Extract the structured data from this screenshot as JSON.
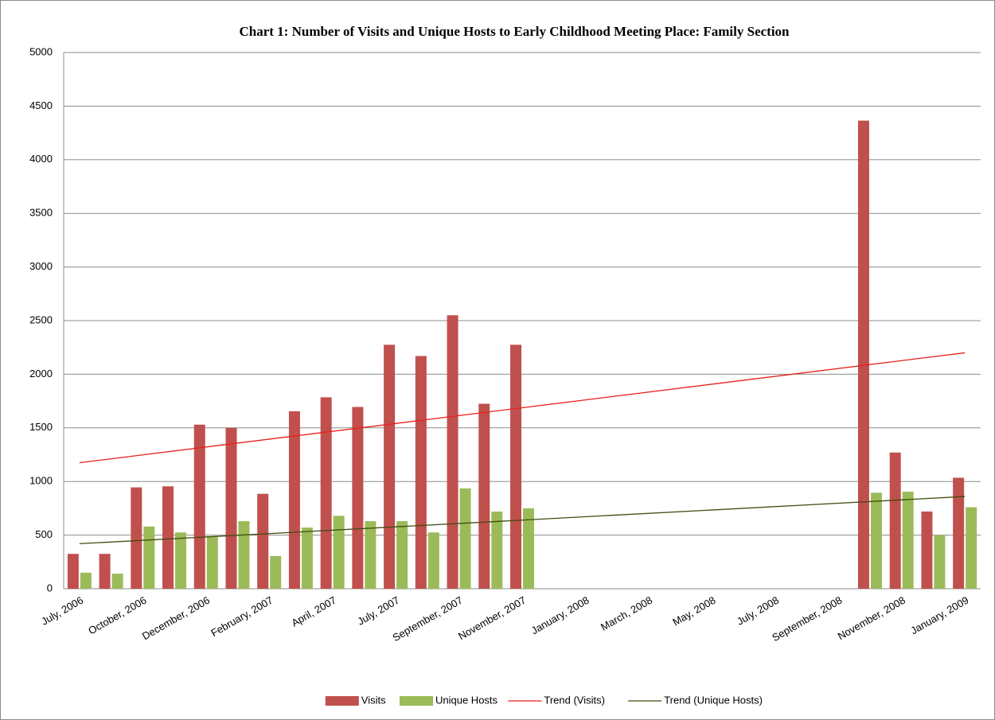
{
  "chart_data": {
    "type": "bar",
    "title": "Chart 1: Number of Visits and Unique Hosts to Early Childhood Meeting Place: Family Section",
    "categories": [
      "July, 2006",
      null,
      "October, 2006",
      null,
      "December, 2006",
      null,
      "February, 2007",
      null,
      "April, 2007",
      null,
      "July, 2007",
      null,
      "September, 2007",
      null,
      "November, 2007",
      null,
      "January, 2008",
      null,
      "March, 2008",
      null,
      "May, 2008",
      null,
      "July, 2008",
      null,
      "September, 2008",
      null,
      "November, 2008",
      null,
      "January, 2009"
    ],
    "series": [
      {
        "name": "Visits",
        "color": "#c0504d",
        "values": [
          325,
          325,
          945,
          955,
          1530,
          1500,
          885,
          1655,
          1785,
          1695,
          2275,
          2170,
          2550,
          1725,
          2275,
          null,
          null,
          null,
          null,
          null,
          null,
          null,
          null,
          null,
          null,
          4365,
          1270,
          720,
          1035
        ]
      },
      {
        "name": "Unique Hosts",
        "color": "#9bbb59",
        "values": [
          150,
          140,
          580,
          525,
          490,
          630,
          305,
          570,
          680,
          630,
          630,
          525,
          935,
          720,
          750,
          null,
          null,
          null,
          null,
          null,
          null,
          null,
          null,
          null,
          null,
          895,
          905,
          500,
          760
        ]
      }
    ],
    "trends": [
      {
        "name": "Trend (Visits)",
        "color": "#e8201c",
        "start": 1175,
        "end": 2200
      },
      {
        "name": "Trend (Unique Hosts)",
        "color": "#3d4d10",
        "start": 420,
        "end": 860
      }
    ],
    "ylim": [
      0,
      5000
    ],
    "yticks": [
      0,
      500,
      1000,
      1500,
      2000,
      2500,
      3000,
      3500,
      4000,
      4500,
      5000
    ],
    "grid": true,
    "legend": "bottom"
  }
}
